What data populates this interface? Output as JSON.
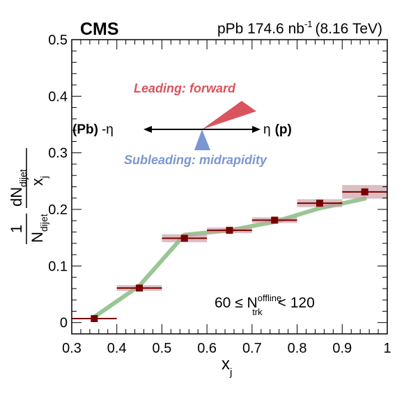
{
  "header": {
    "experiment": "CMS",
    "dataset_prefix": "pPb 174.6 nb",
    "dataset_exponent": "-1",
    "dataset_suffix": "(8.16 TeV)"
  },
  "annotation": {
    "leading": "Leading: forward",
    "subleading": "Subleading: midrapidity",
    "left_label_bold": "(Pb)",
    "left_label_eta": "-η",
    "right_label_eta": "η",
    "right_label_bold": "(p)",
    "selection": {
      "prefix": "60 ≤ N",
      "sup": "offline",
      "sub": "trk",
      "suffix": "< 120"
    },
    "colors": {
      "leading": "#d9545d",
      "subleading": "#7b96d2",
      "arrow": "#000000"
    }
  },
  "chart_data": {
    "type": "scatter",
    "xlabel": "x",
    "xlabel_sub": "j",
    "ylabel": {
      "frac1_num": "1",
      "frac1_den": "N",
      "frac1_den_sub": "dijet",
      "frac2_num": "dN",
      "frac2_num_sub": "dijet",
      "frac2_den": "x",
      "frac2_den_sub": "j"
    },
    "xlim": [
      0.3,
      1.0
    ],
    "ylim": [
      -0.02,
      0.5
    ],
    "x_ticks": [
      "0.3",
      "0.4",
      "0.5",
      "0.6",
      "0.7",
      "0.8",
      "0.9",
      "1"
    ],
    "y_ticks": [
      "0",
      "0.1",
      "0.2",
      "0.3",
      "0.4",
      "0.5"
    ],
    "series": [
      {
        "marker": "square",
        "color": "#7a0000",
        "bin_low": [
          0.3,
          0.4,
          0.5,
          0.6,
          0.7,
          0.8,
          0.9
        ],
        "bin_high": [
          0.4,
          0.5,
          0.6,
          0.7,
          0.8,
          0.9,
          1.0
        ],
        "x": [
          0.35,
          0.45,
          0.55,
          0.65,
          0.75,
          0.85,
          0.95
        ],
        "y": [
          0.007,
          0.061,
          0.149,
          0.163,
          0.181,
          0.211,
          0.231
        ],
        "syst": [
          0.0,
          0.005,
          0.007,
          0.005,
          0.005,
          0.007,
          0.012
        ],
        "syst_color": "#c89aa2"
      },
      {
        "line": "band",
        "color": "#8fc08a",
        "x": [
          0.35,
          0.45,
          0.55,
          0.65,
          0.75,
          0.85,
          0.95
        ],
        "y": [
          0.01,
          0.065,
          0.155,
          0.163,
          0.178,
          0.202,
          0.219
        ]
      }
    ]
  }
}
